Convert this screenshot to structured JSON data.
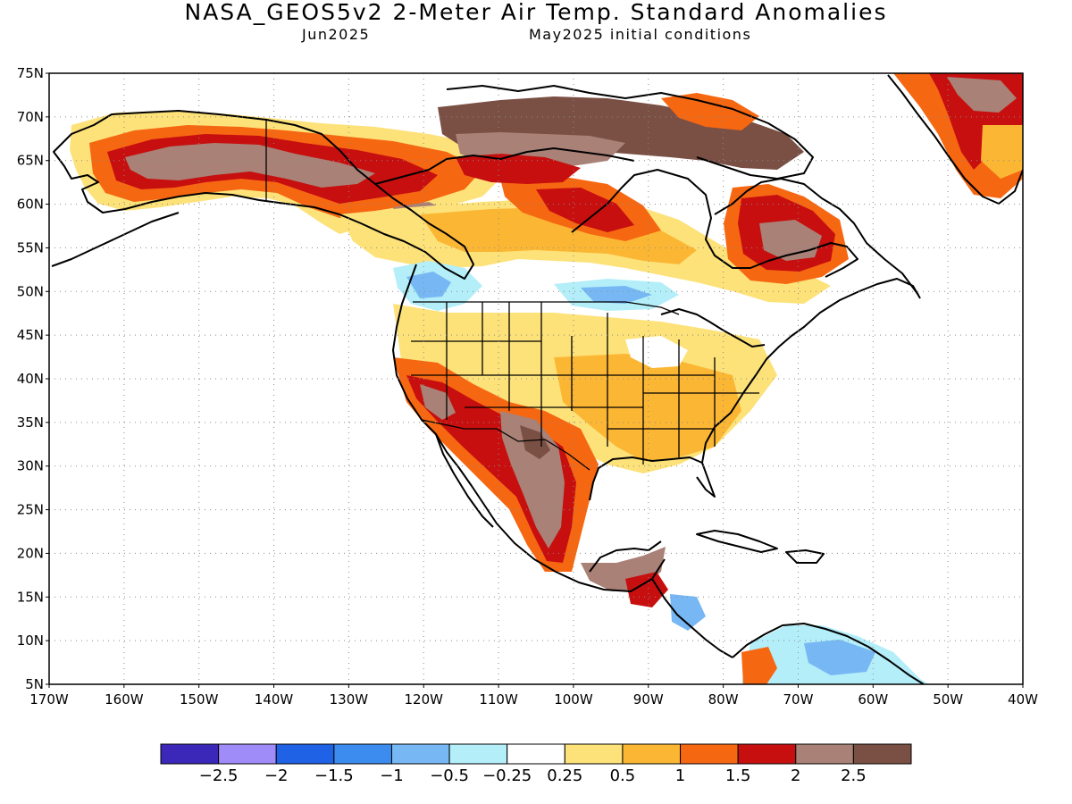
{
  "header": {
    "title": "NASA_GEOS5v2 2-Meter Air Temp. Standard Anomalies",
    "valid_month": "Jun2025",
    "init": "May2025 initial conditions"
  },
  "map": {
    "lon_range": [
      -170,
      -40
    ],
    "lat_range": [
      5,
      75
    ],
    "lat_labels": [
      "75N",
      "70N",
      "65N",
      "60N",
      "55N",
      "50N",
      "45N",
      "40N",
      "35N",
      "30N",
      "25N",
      "20N",
      "15N",
      "10N",
      "5N"
    ],
    "lon_labels": [
      "170W",
      "160W",
      "150W",
      "140W",
      "130W",
      "120W",
      "110W",
      "100W",
      "90W",
      "80W",
      "70W",
      "60W",
      "50W",
      "40W"
    ],
    "grid": true
  },
  "colorbar": {
    "colors": [
      "#3b27b8",
      "#a08cf9",
      "#1f62e6",
      "#3b8cee",
      "#77b8f4",
      "#b3eef9",
      "#ffffff",
      "#fde27a",
      "#fbb734",
      "#f66712",
      "#c70f0f",
      "#a98176",
      "#7a4f44"
    ],
    "labels": [
      "−2.5",
      "−2",
      "−1.5",
      "−1",
      "−0.5",
      "−0.25",
      "0.25",
      "0.5",
      "1",
      "1.5",
      "2",
      "2.5"
    ]
  }
}
